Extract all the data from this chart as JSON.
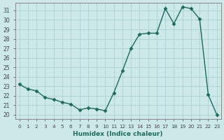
{
  "x": [
    0,
    1,
    2,
    3,
    4,
    5,
    6,
    7,
    8,
    9,
    10,
    11,
    12,
    13,
    14,
    15,
    16,
    17,
    18,
    19,
    20,
    21,
    22,
    23
  ],
  "y": [
    23.2,
    22.7,
    22.5,
    21.8,
    21.6,
    21.3,
    21.1,
    20.5,
    20.7,
    20.6,
    20.4,
    22.3,
    24.6,
    27.0,
    28.5,
    28.6,
    28.6,
    31.2,
    29.6,
    31.4,
    31.2,
    30.1,
    22.1,
    20.0
  ],
  "line_color": "#1a6b5a",
  "bg_color": "#cce8e8",
  "grid_color": "#b0d4d4",
  "xlabel": "Humidex (Indice chaleur)",
  "yticks": [
    20,
    21,
    22,
    23,
    24,
    25,
    26,
    27,
    28,
    29,
    30,
    31
  ],
  "xlim": [
    -0.5,
    23.5
  ],
  "ylim": [
    19.5,
    31.8
  ]
}
